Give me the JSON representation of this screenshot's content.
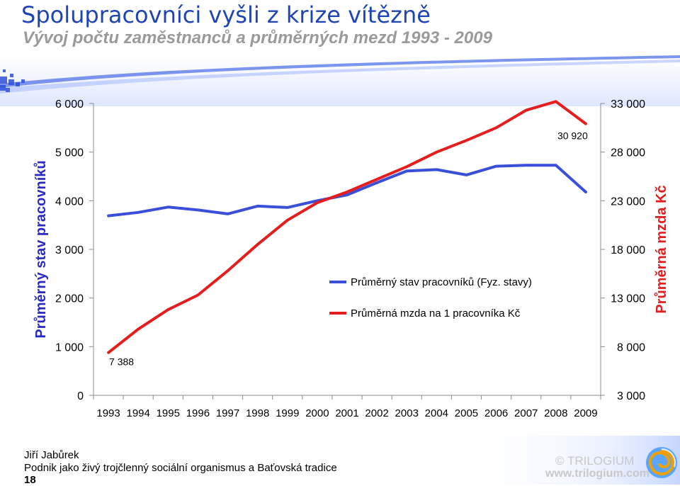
{
  "header": {
    "title": "Spolupracovníci vyšli z krize vítězně",
    "subtitle": "Vývoj počtu zaměstnanců a průměrných mezd 1993 - 2009"
  },
  "colors": {
    "title": "#1f44b4",
    "subtitle": "#9a9a9a",
    "employees_series": "#3a4fd8",
    "wage_series": "#e41e1e",
    "left_axis_label": "#2a2ac8",
    "right_axis_label": "#e41e1e"
  },
  "chart_data": {
    "type": "line",
    "x": [
      "1993",
      "1994",
      "1995",
      "1996",
      "1997",
      "1998",
      "1999",
      "2000",
      "2001",
      "2002",
      "2003",
      "2004",
      "2005",
      "2006",
      "2007",
      "2008",
      "2009"
    ],
    "series": [
      {
        "name": "Průměrný stav pracovníků (Fyz. stavy)",
        "axis": "left",
        "values": [
          3690,
          3760,
          3870,
          3810,
          3730,
          3890,
          3860,
          4000,
          4120,
          4370,
          4610,
          4640,
          4530,
          4710,
          4730,
          4730,
          4180
        ]
      },
      {
        "name": "Průměrná mzda na 1 pracovníka Kč",
        "axis": "right",
        "values": [
          7388,
          9800,
          11800,
          13300,
          15800,
          18500,
          21000,
          22800,
          23900,
          25200,
          26500,
          28000,
          29200,
          30500,
          32300,
          33200,
          30920
        ]
      }
    ],
    "y_left": {
      "label": "Průměrný stav pracovníků",
      "ylim": [
        0,
        6000
      ],
      "ticks": [
        "0",
        "1 000",
        "2 000",
        "3 000",
        "4 000",
        "5 000",
        "6 000"
      ]
    },
    "y_right": {
      "label": "Průměrná mzda Kč",
      "ylim": [
        3000,
        33000
      ],
      "ticks": [
        "3 000",
        "8 000",
        "13 000",
        "18 000",
        "23 000",
        "28 000",
        "33 000"
      ]
    },
    "data_labels": [
      {
        "series": 1,
        "index": 0,
        "text": "7 388"
      },
      {
        "series": 1,
        "index": 16,
        "text": "30 920"
      }
    ],
    "grid": false,
    "legend_placement": "center-right"
  },
  "footer": {
    "author": "Jiří Jabůrek",
    "organization": "Podnik jako živý trojčlenný sociální organismus a Baťovská tradice",
    "page_number": "18",
    "brand": "© TRILOGIUM",
    "url": "www.trilogium.com"
  }
}
